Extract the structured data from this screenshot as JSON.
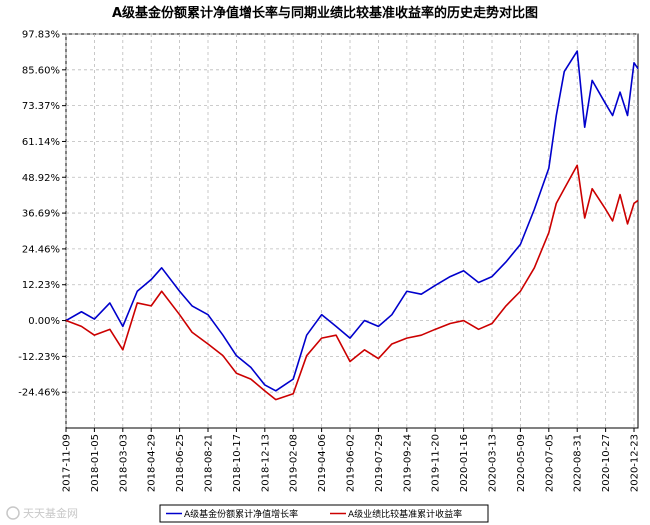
{
  "chart_data": {
    "type": "line",
    "title": "A级基金份额累计净值增长率与同期业绩比较基准收益率的历史走势对比图",
    "xlabel": "",
    "ylabel": "",
    "x_ticks": [
      "2017-11-09",
      "2018-01-05",
      "2018-03-03",
      "2018-04-29",
      "2018-06-25",
      "2018-08-21",
      "2018-10-17",
      "2018-12-13",
      "2019-02-08",
      "2019-04-06",
      "2019-06-02",
      "2019-07-29",
      "2019-09-24",
      "2019-11-20",
      "2020-01-16",
      "2020-03-13",
      "2020-05-09",
      "2020-07-05",
      "2020-08-31",
      "2020-10-27",
      "2020-12-23"
    ],
    "y_ticks": [
      "97.83%",
      "85.60%",
      "73.37%",
      "61.14%",
      "48.92%",
      "36.69%",
      "24.46%",
      "12.23%",
      "0.00%",
      "-12.23%",
      "-24.46%"
    ],
    "ylim": [
      -36.69,
      97.83
    ],
    "grid": true,
    "legend_position": "bottom-center",
    "x_sample_dates": [
      "2017-11-09",
      "2017-12-10",
      "2018-01-05",
      "2018-02-05",
      "2018-03-03",
      "2018-04-01",
      "2018-04-29",
      "2018-05-20",
      "2018-06-25",
      "2018-07-20",
      "2018-08-21",
      "2018-09-20",
      "2018-10-17",
      "2018-11-15",
      "2018-12-13",
      "2019-01-04",
      "2019-02-08",
      "2019-03-07",
      "2019-04-06",
      "2019-05-05",
      "2019-06-02",
      "2019-07-01",
      "2019-07-29",
      "2019-08-25",
      "2019-09-24",
      "2019-10-23",
      "2019-11-20",
      "2019-12-20",
      "2020-01-16",
      "2020-02-15",
      "2020-03-13",
      "2020-04-10",
      "2020-05-09",
      "2020-06-06",
      "2020-07-05",
      "2020-07-20",
      "2020-08-05",
      "2020-08-31",
      "2020-09-15",
      "2020-09-30",
      "2020-10-27",
      "2020-11-10",
      "2020-11-25",
      "2020-12-10",
      "2020-12-23",
      "2020-12-31"
    ],
    "series": [
      {
        "name": "A级基金份额累计净值增长率",
        "color": "#0000cc",
        "values": [
          0.0,
          3.0,
          0.5,
          6.0,
          -2.0,
          10.0,
          14.0,
          18.0,
          10.0,
          5.0,
          2.0,
          -5.0,
          -12.0,
          -16.0,
          -22.0,
          -24.0,
          -20.0,
          -5.0,
          2.0,
          -2.0,
          -6.0,
          0.0,
          -2.0,
          2.0,
          10.0,
          9.0,
          12.0,
          15.0,
          17.0,
          13.0,
          15.0,
          20.0,
          26.0,
          38.0,
          52.0,
          70.0,
          85.0,
          92.0,
          66.0,
          82.0,
          74.0,
          70.0,
          78.0,
          70.0,
          88.0,
          86.0
        ]
      },
      {
        "name": "A级业绩比较基准累计收益率",
        "color": "#cc0000",
        "values": [
          0.0,
          -2.0,
          -5.0,
          -3.0,
          -10.0,
          6.0,
          5.0,
          10.0,
          2.0,
          -4.0,
          -8.0,
          -12.0,
          -18.0,
          -20.0,
          -24.0,
          -27.0,
          -25.0,
          -12.0,
          -6.0,
          -5.0,
          -14.0,
          -10.0,
          -13.0,
          -8.0,
          -6.0,
          -5.0,
          -3.0,
          -1.0,
          0.0,
          -3.0,
          -1.0,
          5.0,
          10.0,
          18.0,
          30.0,
          40.0,
          45.0,
          53.0,
          35.0,
          45.0,
          38.0,
          34.0,
          43.0,
          33.0,
          40.0,
          41.0
        ]
      }
    ]
  },
  "legend": {
    "items": [
      {
        "label": "A级基金份额累计净值增长率",
        "color": "#0000cc"
      },
      {
        "label": "A级业绩比较基准累计收益率",
        "color": "#cc0000"
      }
    ]
  },
  "watermark": "天天基金网"
}
